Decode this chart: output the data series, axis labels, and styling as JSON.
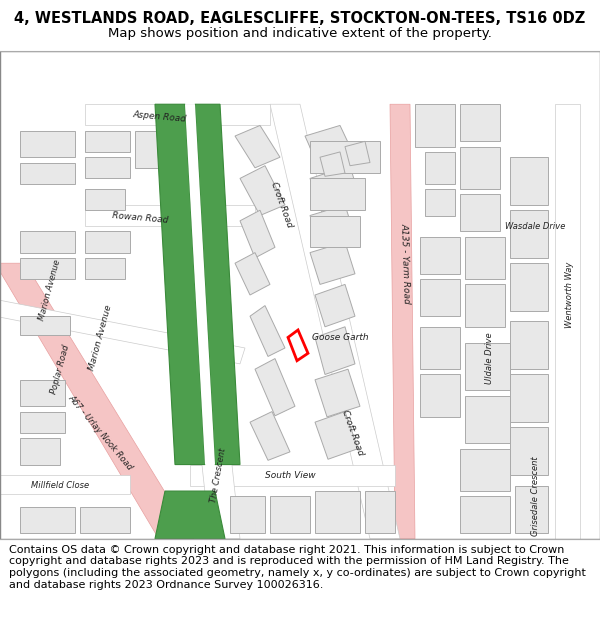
{
  "title_line1": "4, WESTLANDS ROAD, EAGLESCLIFFE, STOCKTON-ON-TEES, TS16 0DZ",
  "title_line2": "Map shows position and indicative extent of the property.",
  "footer_text": "Contains OS data © Crown copyright and database right 2021. This information is subject to Crown copyright and database rights 2023 and is reproduced with the permission of HM Land Registry. The polygons (including the associated geometry, namely x, y co-ordinates) are subject to Crown copyright and database rights 2023 Ordnance Survey 100026316.",
  "bg_color": "#ffffff",
  "map_bg": "#ffffff",
  "title_fontsize": 10.5,
  "subtitle_fontsize": 9.5,
  "footer_fontsize": 8.0
}
